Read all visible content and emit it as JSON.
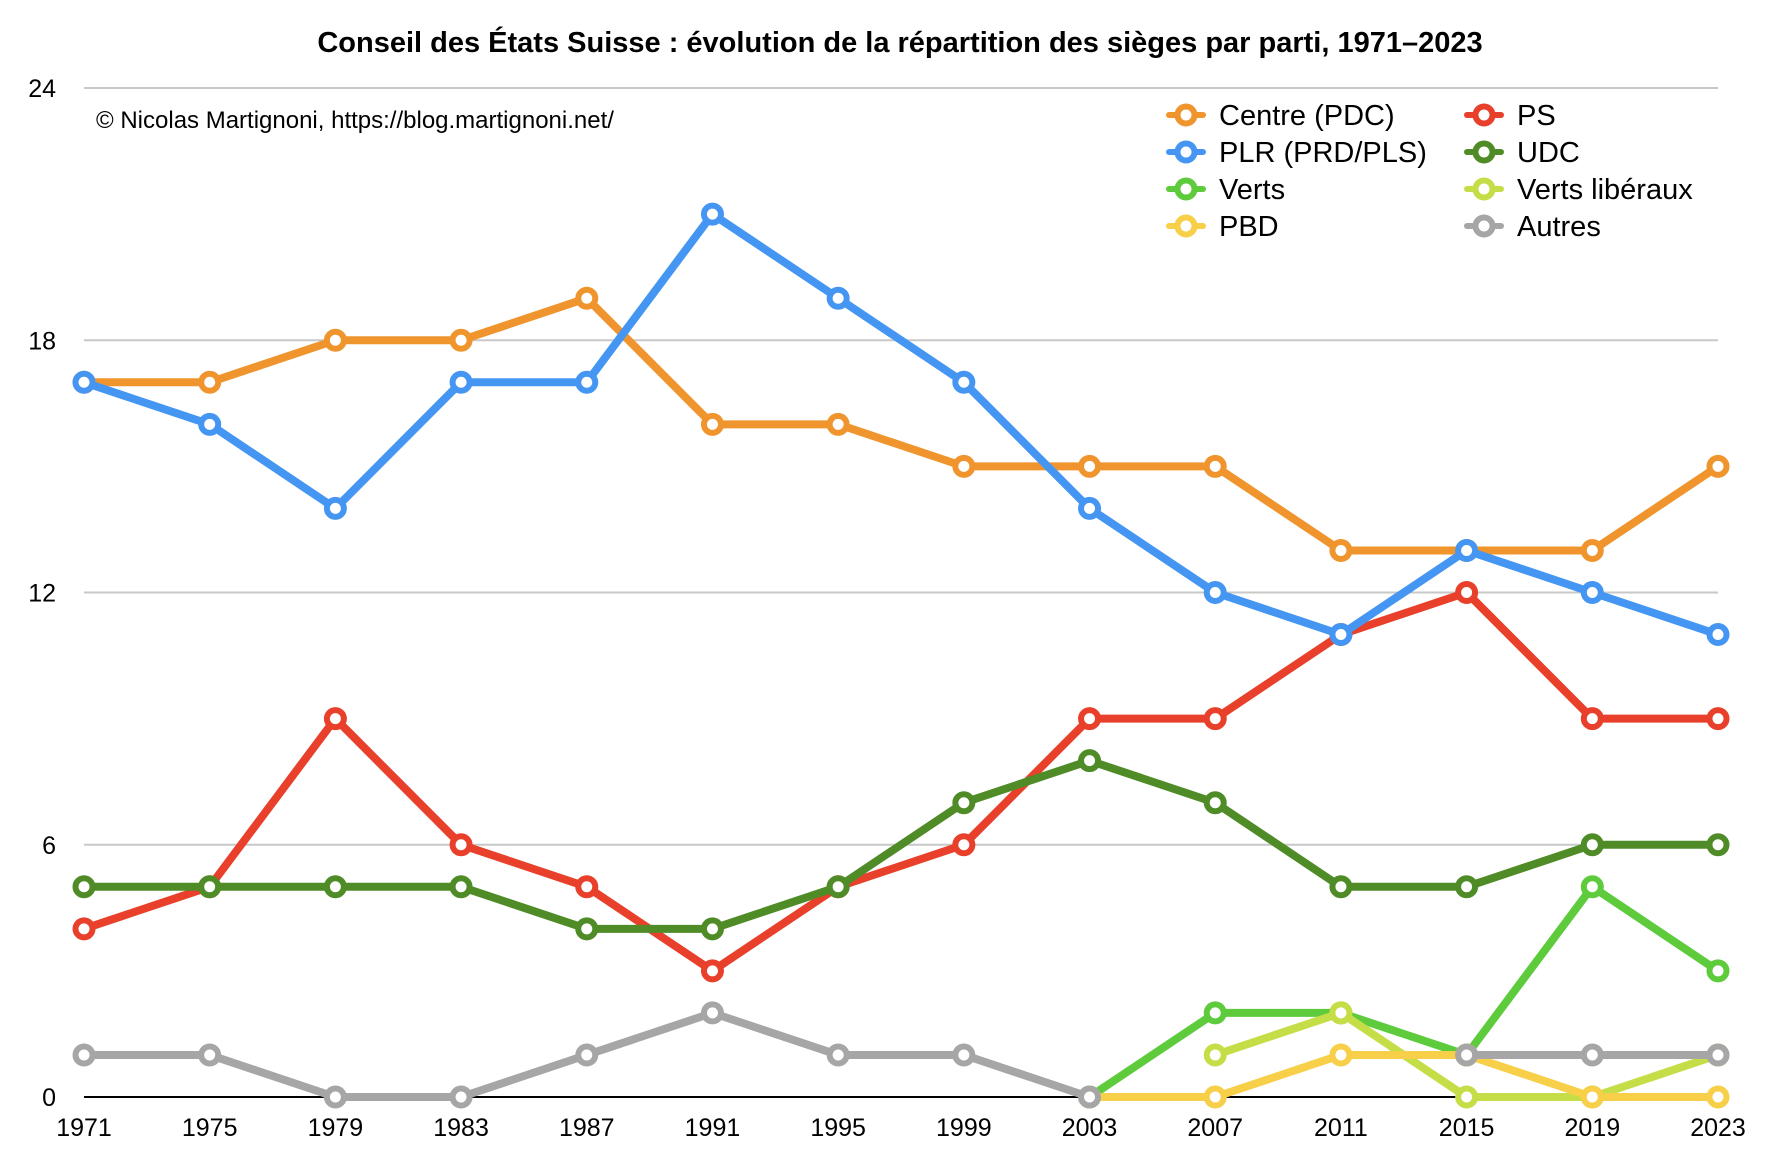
{
  "chart_data": {
    "type": "line",
    "title": "Conseil des États Suisse : évolution de la répartition des sièges par parti, 1971–2023",
    "credit": "© Nicolas Martignoni, https://blog.martignoni.net/",
    "xlabel": "",
    "ylabel": "",
    "ylim": [
      0,
      24
    ],
    "yticks": [
      "0",
      "6",
      "12",
      "18",
      "24"
    ],
    "grid": true,
    "legend_position": "top-right",
    "categories": [
      "1971",
      "1975",
      "1979",
      "1983",
      "1987",
      "1991",
      "1995",
      "1999",
      "2003",
      "2007",
      "2011",
      "2015",
      "2019",
      "2023"
    ],
    "series": [
      {
        "name": "Centre (PDC)",
        "color": "#F0952E",
        "values": [
          17,
          17,
          18,
          18,
          19,
          16,
          16,
          15,
          15,
          15,
          13,
          13,
          13,
          15
        ]
      },
      {
        "name": "PS",
        "color": "#E8402B",
        "values": [
          4,
          5,
          9,
          6,
          5,
          3,
          5,
          6,
          9,
          9,
          11,
          12,
          9,
          9
        ]
      },
      {
        "name": "PLR (PRD/PLS)",
        "color": "#4596F2",
        "values": [
          17,
          16,
          14,
          17,
          17,
          21,
          19,
          17,
          14,
          12,
          11,
          13,
          12,
          11
        ]
      },
      {
        "name": "UDC",
        "color": "#4F8C27",
        "values": [
          5,
          5,
          5,
          5,
          4,
          4,
          5,
          7,
          8,
          7,
          5,
          5,
          6,
          6
        ]
      },
      {
        "name": "Verts",
        "color": "#5DCB3C",
        "values": [
          null,
          null,
          null,
          null,
          null,
          null,
          null,
          null,
          0,
          2,
          2,
          1,
          5,
          3
        ]
      },
      {
        "name": "Verts libéraux",
        "color": "#C5DE47",
        "values": [
          null,
          null,
          null,
          null,
          null,
          null,
          null,
          null,
          null,
          1,
          2,
          0,
          0,
          1
        ]
      },
      {
        "name": "PBD",
        "color": "#F7CF48",
        "values": [
          null,
          null,
          null,
          null,
          null,
          null,
          null,
          null,
          0,
          0,
          1,
          1,
          0,
          0
        ]
      },
      {
        "name": "Autres",
        "color": "#A6A6A6",
        "values": [
          1,
          1,
          0,
          0,
          1,
          2,
          1,
          1,
          0,
          null,
          null,
          1,
          1,
          1
        ]
      }
    ],
    "legend_order": [
      "Centre (PDC)",
      "PS",
      "PLR (PRD/PLS)",
      "UDC",
      "Verts",
      "Verts libéraux",
      "PBD",
      "Autres"
    ]
  }
}
